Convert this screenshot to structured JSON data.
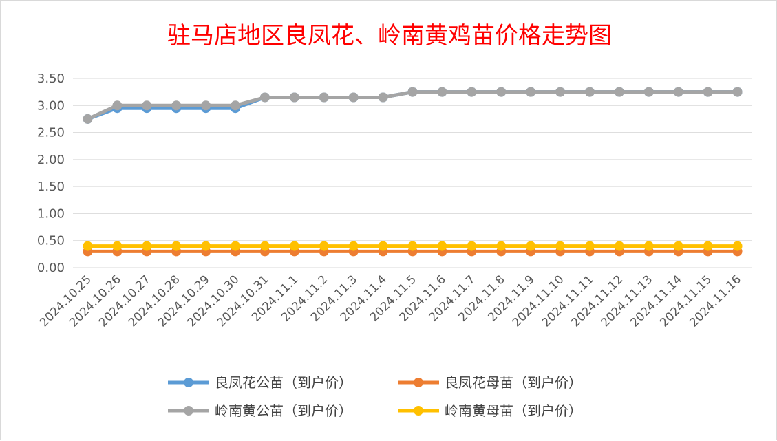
{
  "chart_data": {
    "type": "line",
    "title": "驻马店地区良凤花、岭南黄鸡苗价格走势图",
    "xlabel": "",
    "ylabel": "",
    "ylim": [
      0,
      3.5
    ],
    "yticks": [
      "0.00",
      "0.50",
      "1.00",
      "1.50",
      "2.00",
      "2.50",
      "3.00",
      "3.50"
    ],
    "grid": true,
    "legend_position": "bottom",
    "categories": [
      "2024.10.25",
      "2024.10.26",
      "2024.10.27",
      "2024.10.28",
      "2024.10.29",
      "2024.10.30",
      "2024.10.31",
      "2024.11.1",
      "2024.11.2",
      "2024.11.3",
      "2024.11.4",
      "2024.11.5",
      "2024.11.6",
      "2024.11.7",
      "2024.11.8",
      "2024.11.9",
      "2024.11.10",
      "2024.11.11",
      "2024.11.12",
      "2024.11.13",
      "2024.11.14",
      "2024.11.15",
      "2024.11.16"
    ],
    "series": [
      {
        "name": "良凤花公苗（到户价）",
        "color": "#5b9bd5",
        "values": [
          2.75,
          2.95,
          2.95,
          2.95,
          2.95,
          2.95,
          3.15,
          3.15,
          3.15,
          3.15,
          3.15,
          3.25,
          3.25,
          3.25,
          3.25,
          3.25,
          3.25,
          3.25,
          3.25,
          3.25,
          3.25,
          3.25,
          3.25
        ]
      },
      {
        "name": "良凤花母苗（到户价）",
        "color": "#ed7d31",
        "values": [
          0.3,
          0.3,
          0.3,
          0.3,
          0.3,
          0.3,
          0.3,
          0.3,
          0.3,
          0.3,
          0.3,
          0.3,
          0.3,
          0.3,
          0.3,
          0.3,
          0.3,
          0.3,
          0.3,
          0.3,
          0.3,
          0.3,
          0.3
        ]
      },
      {
        "name": "岭南黄公苗（到户价）",
        "color": "#a5a5a5",
        "values": [
          2.75,
          3.0,
          3.0,
          3.0,
          3.0,
          3.0,
          3.15,
          3.15,
          3.15,
          3.15,
          3.15,
          3.25,
          3.25,
          3.25,
          3.25,
          3.25,
          3.25,
          3.25,
          3.25,
          3.25,
          3.25,
          3.25,
          3.25
        ]
      },
      {
        "name": "岭南黄母苗（到户价）",
        "color": "#ffc000",
        "values": [
          0.4,
          0.4,
          0.4,
          0.4,
          0.4,
          0.4,
          0.4,
          0.4,
          0.4,
          0.4,
          0.4,
          0.4,
          0.4,
          0.4,
          0.4,
          0.4,
          0.4,
          0.4,
          0.4,
          0.4,
          0.4,
          0.4,
          0.4
        ]
      }
    ],
    "legend_order": [
      0,
      1,
      2,
      3
    ]
  }
}
